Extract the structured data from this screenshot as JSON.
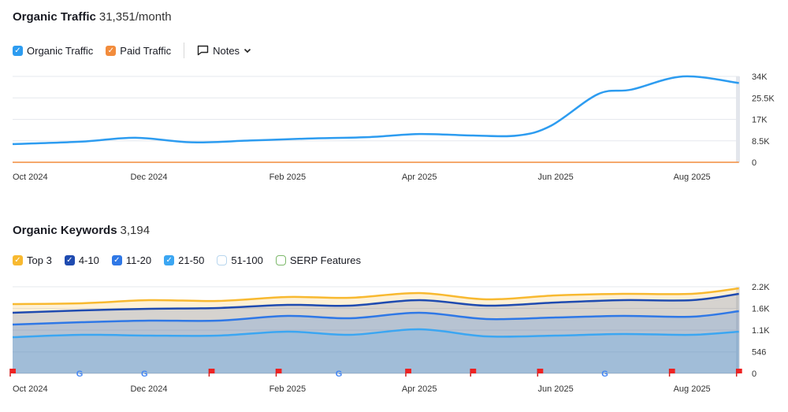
{
  "traffic": {
    "title": "Organic Traffic",
    "value": "31,351/month",
    "legend": [
      {
        "label": "Organic Traffic",
        "color": "#2d9cf0",
        "checked": true
      },
      {
        "label": "Paid Traffic",
        "color": "#f28c3c",
        "checked": true
      }
    ],
    "notes_label": "Notes",
    "icons": {
      "notes": "comment-icon",
      "dropdown": "chevron-down-icon"
    }
  },
  "keywords": {
    "title": "Organic Keywords",
    "value": "3,194",
    "legend": [
      {
        "label": "Top 3",
        "color": "#f8b930",
        "checked": true
      },
      {
        "label": "4-10",
        "color": "#1f4bb0",
        "checked": true
      },
      {
        "label": "11-20",
        "color": "#2f78e6",
        "checked": true
      },
      {
        "label": "21-50",
        "color": "#3ba6f2",
        "checked": true
      },
      {
        "label": "51-100",
        "color": "#b8d6ee",
        "checked": false
      },
      {
        "label": "SERP Features",
        "color": "#7cb86a",
        "checked": false
      }
    ]
  },
  "chart_data": [
    {
      "type": "line",
      "ylim": [
        0,
        34000
      ],
      "yticks": [
        "0",
        "8.5K",
        "17K",
        "25.5K",
        "34K"
      ],
      "ytick_values": [
        0,
        8500,
        17000,
        25500,
        34000
      ],
      "xticks": [
        "Oct 2024",
        "Dec 2024",
        "Feb 2025",
        "Apr 2025",
        "Jun 2025",
        "Aug 2025"
      ],
      "xtick_dates": [
        "2024-10-01",
        "2024-12-01",
        "2025-02-01",
        "2025-04-01",
        "2025-06-01",
        "2025-08-01"
      ],
      "grid": true,
      "series": [
        {
          "name": "Organic Traffic",
          "color": "#2d9cf0",
          "x": [
            "2024-10-01",
            "2024-11-01",
            "2024-11-25",
            "2024-12-20",
            "2025-01-15",
            "2025-02-10",
            "2025-03-10",
            "2025-04-01",
            "2025-04-25",
            "2025-05-15",
            "2025-05-30",
            "2025-06-20",
            "2025-07-05",
            "2025-07-28",
            "2025-08-22"
          ],
          "values": [
            7200,
            8200,
            9700,
            7900,
            8600,
            9400,
            10000,
            11200,
            10600,
            10600,
            14500,
            27000,
            28800,
            34000,
            31400
          ]
        },
        {
          "name": "Paid Traffic",
          "color": "#f28c3c",
          "x": [
            "2024-10-01",
            "2025-08-22"
          ],
          "values": [
            0,
            0
          ]
        }
      ]
    },
    {
      "type": "area",
      "ylim": [
        0,
        2200
      ],
      "yticks": [
        "0",
        "546",
        "1.1K",
        "1.6K",
        "2.2K"
      ],
      "ytick_values": [
        0,
        546,
        1100,
        1650,
        2200
      ],
      "xticks": [
        "Oct 2024",
        "Dec 2024",
        "Feb 2025",
        "Apr 2025",
        "Jun 2025",
        "Aug 2025"
      ],
      "xtick_dates": [
        "2024-10-01",
        "2024-12-01",
        "2025-02-01",
        "2025-04-01",
        "2025-06-01",
        "2025-08-01"
      ],
      "x": [
        "2024-10-01",
        "2024-11-01",
        "2024-12-01",
        "2025-01-01",
        "2025-02-01",
        "2025-03-01",
        "2025-04-01",
        "2025-05-01",
        "2025-06-01",
        "2025-07-01",
        "2025-08-01",
        "2025-08-22"
      ],
      "series": [
        {
          "name": "Top 3",
          "color": "#f8b930",
          "values": [
            1760,
            1780,
            1860,
            1840,
            1940,
            1920,
            2040,
            1880,
            1980,
            2020,
            2020,
            2160
          ]
        },
        {
          "name": "4-10",
          "color": "#1f4bb0",
          "values": [
            1540,
            1600,
            1640,
            1660,
            1740,
            1720,
            1860,
            1720,
            1800,
            1860,
            1860,
            2020
          ]
        },
        {
          "name": "11-20",
          "color": "#2f78e6",
          "values": [
            1240,
            1300,
            1340,
            1340,
            1460,
            1400,
            1540,
            1380,
            1420,
            1460,
            1440,
            1580
          ]
        },
        {
          "name": "21-50",
          "color": "#3ba6f2",
          "values": [
            920,
            980,
            960,
            960,
            1060,
            980,
            1120,
            940,
            960,
            1000,
            980,
            1060
          ]
        }
      ],
      "markers": [
        {
          "date": "2024-10-01",
          "type": "flag"
        },
        {
          "date": "2024-10-31",
          "type": "google"
        },
        {
          "date": "2024-11-29",
          "type": "google"
        },
        {
          "date": "2024-12-29",
          "type": "flag"
        },
        {
          "date": "2025-01-28",
          "type": "flag"
        },
        {
          "date": "2025-02-24",
          "type": "google"
        },
        {
          "date": "2025-03-27",
          "type": "flag"
        },
        {
          "date": "2025-04-25",
          "type": "flag"
        },
        {
          "date": "2025-05-25",
          "type": "flag"
        },
        {
          "date": "2025-06-23",
          "type": "google"
        },
        {
          "date": "2025-07-23",
          "type": "flag"
        },
        {
          "date": "2025-08-22",
          "type": "flag"
        }
      ]
    }
  ]
}
